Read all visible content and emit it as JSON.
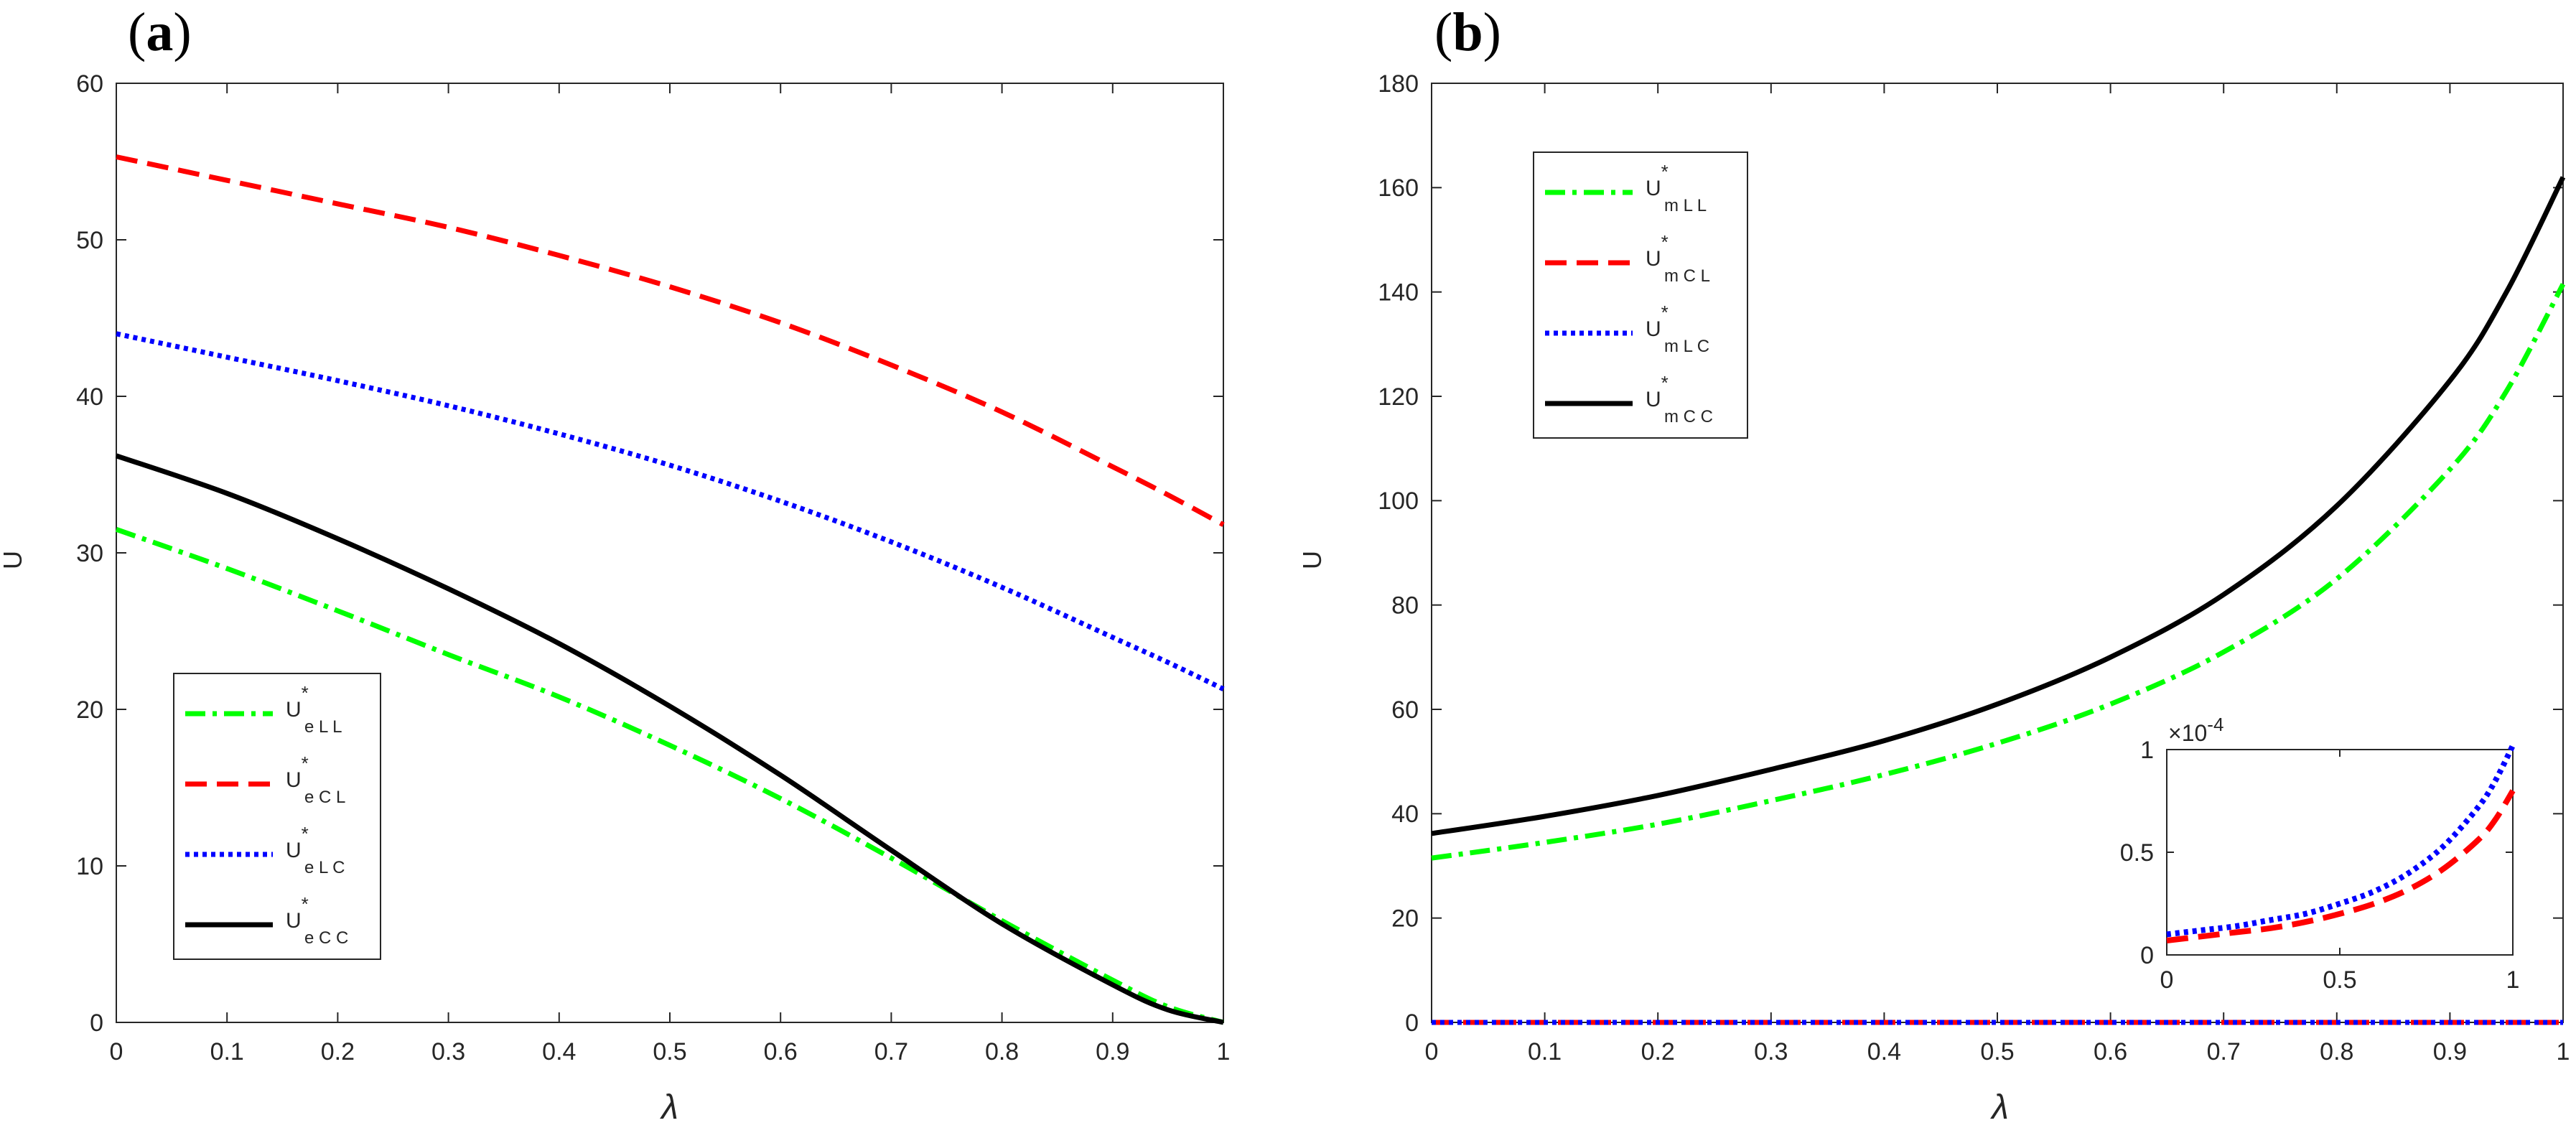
{
  "chart_data": [
    {
      "id": "a",
      "type": "line",
      "panel_label": "a",
      "xlabel": "λ",
      "ylabel": "U",
      "xlim": [
        0,
        1
      ],
      "ylim": [
        0,
        60
      ],
      "xticks": [
        0,
        0.1,
        0.2,
        0.3,
        0.4,
        0.5,
        0.6,
        0.7,
        0.8,
        0.9,
        1
      ],
      "xtick_labels": [
        "0",
        "0.1",
        "0.2",
        "0.3",
        "0.4",
        "0.5",
        "0.6",
        "0.7",
        "0.8",
        "0.9",
        "1"
      ],
      "yticks": [
        0,
        10,
        20,
        30,
        40,
        50,
        60
      ],
      "ytick_labels": [
        "0",
        "10",
        "20",
        "30",
        "40",
        "50",
        "60"
      ],
      "grid": false,
      "legend_position": "lower-left",
      "x": [
        0,
        0.1,
        0.2,
        0.3,
        0.4,
        0.5,
        0.6,
        0.7,
        0.8,
        0.9,
        0.95,
        1
      ],
      "series": [
        {
          "name": "U*eLL",
          "base": "U",
          "sup": "*",
          "sub": "e L L",
          "color": "#00ff00",
          "style": "dashdot",
          "values": [
            31.5,
            29.0,
            26.3,
            23.5,
            20.8,
            17.7,
            14.3,
            10.5,
            6.5,
            2.7,
            1.0,
            0
          ]
        },
        {
          "name": "U*eCL",
          "base": "U",
          "sup": "*",
          "sub": "e C L",
          "color": "#ff0000",
          "style": "dashed",
          "values": [
            55.3,
            53.8,
            52.3,
            50.8,
            49.0,
            47.0,
            44.7,
            42.0,
            39.0,
            35.5,
            33.7,
            31.8
          ]
        },
        {
          "name": "U*eLC",
          "base": "U",
          "sup": "*",
          "sub": "e L C",
          "color": "#0000ff",
          "style": "dotted",
          "values": [
            44.0,
            42.5,
            41.0,
            39.4,
            37.6,
            35.6,
            33.3,
            30.7,
            27.8,
            24.6,
            23.0,
            21.3
          ]
        },
        {
          "name": "U*eCC",
          "base": "U",
          "sup": "*",
          "sub": "e C C",
          "color": "#000000",
          "style": "solid",
          "values": [
            36.2,
            33.8,
            30.9,
            27.7,
            24.2,
            20.2,
            15.8,
            11.0,
            6.3,
            2.4,
            0.8,
            0
          ]
        }
      ]
    },
    {
      "id": "b",
      "type": "line",
      "panel_label": "b",
      "xlabel": "λ",
      "ylabel": "U",
      "xlim": [
        0,
        1
      ],
      "ylim": [
        0,
        180
      ],
      "xticks": [
        0,
        0.1,
        0.2,
        0.3,
        0.4,
        0.5,
        0.6,
        0.7,
        0.8,
        0.9,
        1
      ],
      "xtick_labels": [
        "0",
        "0.1",
        "0.2",
        "0.3",
        "0.4",
        "0.5",
        "0.6",
        "0.7",
        "0.8",
        "0.9",
        "1"
      ],
      "yticks": [
        0,
        20,
        40,
        60,
        80,
        100,
        120,
        140,
        160,
        180
      ],
      "ytick_labels": [
        "0",
        "20",
        "40",
        "60",
        "80",
        "100",
        "120",
        "140",
        "160",
        "180"
      ],
      "grid": false,
      "legend_position": "top-left",
      "x": [
        0,
        0.1,
        0.2,
        0.3,
        0.4,
        0.5,
        0.6,
        0.7,
        0.8,
        0.9,
        0.95,
        1
      ],
      "series": [
        {
          "name": "U*mLL",
          "base": "U",
          "sup": "*",
          "sub": "m L L",
          "color": "#00ff00",
          "style": "dashdot",
          "values": [
            31.5,
            34.5,
            38.0,
            42.5,
            47.5,
            53.5,
            61.0,
            71.0,
            85.0,
            106.0,
            121.0,
            141.5
          ]
        },
        {
          "name": "U*mCL",
          "base": "U",
          "sup": "*",
          "sub": "m C L",
          "color": "#ff0000",
          "style": "dashed",
          "values": [
            0,
            0,
            0,
            0,
            0,
            0,
            0,
            0,
            0,
            0,
            0,
            0
          ]
        },
        {
          "name": "U*mLC",
          "base": "U",
          "sup": "*",
          "sub": "m L C",
          "color": "#0000ff",
          "style": "dotted",
          "values": [
            0,
            0,
            0,
            0,
            0,
            0,
            0,
            0,
            0,
            0,
            0,
            0
          ]
        },
        {
          "name": "U*mCC",
          "base": "U",
          "sup": "*",
          "sub": "m C C",
          "color": "#000000",
          "style": "solid",
          "values": [
            36.2,
            39.5,
            43.5,
            48.5,
            54.0,
            61.0,
            70.0,
            82.0,
            99.0,
            123.0,
            140.0,
            162.0
          ]
        }
      ],
      "inset": {
        "type": "line",
        "exponent_label": "×10",
        "exponent_power": "-4",
        "xlim": [
          0,
          1
        ],
        "ylim": [
          0,
          1
        ],
        "xticks": [
          0,
          0.5,
          1
        ],
        "xtick_labels": [
          "0",
          "0.5",
          "1"
        ],
        "yticks": [
          0,
          0.5,
          1
        ],
        "ytick_labels": [
          "0",
          "0.5",
          "1"
        ],
        "x": [
          0,
          0.1,
          0.2,
          0.3,
          0.4,
          0.5,
          0.6,
          0.7,
          0.8,
          0.9,
          0.95,
          1
        ],
        "series": [
          {
            "name": "U*mCL",
            "color": "#ff0000",
            "style": "dashed",
            "values": [
              0.07,
              0.09,
              0.11,
              0.13,
              0.16,
              0.2,
              0.25,
              0.32,
              0.42,
              0.56,
              0.66,
              0.8
            ]
          },
          {
            "name": "U*mLC",
            "color": "#0000ff",
            "style": "dotted",
            "values": [
              0.1,
              0.12,
              0.14,
              0.17,
              0.2,
              0.25,
              0.31,
              0.4,
              0.53,
              0.72,
              0.85,
              1.02
            ]
          }
        ]
      }
    }
  ]
}
